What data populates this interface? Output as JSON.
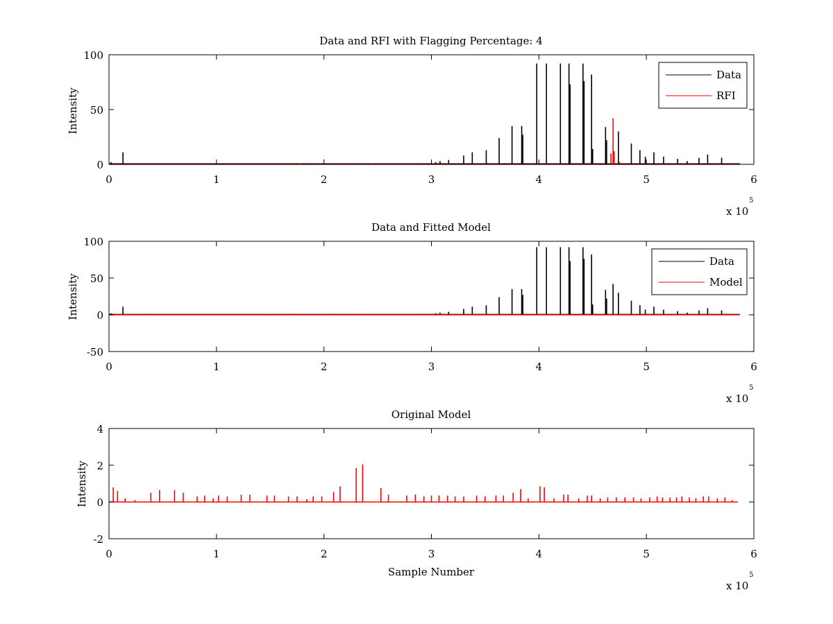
{
  "figure": {
    "background": "#ffffff",
    "axis_color": "#000000"
  },
  "chart_data": [
    {
      "type": "line",
      "title": "Data and RFI with Flagging Percentage: 4",
      "xlabel": "",
      "ylabel": "Intensity",
      "xlim": [
        0,
        6
      ],
      "ylim": [
        0,
        100
      ],
      "xticks": [
        "0",
        "1",
        "2",
        "3",
        "4",
        "5",
        "6"
      ],
      "yticks": [
        "0",
        "50",
        "100"
      ],
      "ytick_values": [
        0,
        50,
        100
      ],
      "x_multiplier": {
        "base": "x 10",
        "exponent": "5"
      },
      "grid": false,
      "legend": {
        "position": "top-right",
        "entries": [
          {
            "label": "Data",
            "color": "#000000"
          },
          {
            "label": "RFI",
            "color": "#ff0000"
          }
        ]
      },
      "series": [
        {
          "name": "Data",
          "color": "#000000",
          "baseline": 0.5,
          "spikes": [
            [
              0.02,
              2
            ],
            [
              0.13,
              11
            ],
            [
              1.75,
              1
            ],
            [
              2.06,
              1
            ],
            [
              2.72,
              1
            ],
            [
              2.86,
              1
            ],
            [
              2.96,
              1
            ],
            [
              3.04,
              2
            ],
            [
              3.08,
              3
            ],
            [
              3.16,
              4
            ],
            [
              3.3,
              8
            ],
            [
              3.38,
              11
            ],
            [
              3.51,
              13
            ],
            [
              3.63,
              24
            ],
            [
              3.75,
              35
            ],
            [
              3.84,
              35
            ],
            [
              3.85,
              27
            ],
            [
              3.98,
              92
            ],
            [
              4.07,
              92
            ],
            [
              4.2,
              92
            ],
            [
              4.28,
              92
            ],
            [
              4.29,
              73
            ],
            [
              4.41,
              92
            ],
            [
              4.42,
              76
            ],
            [
              4.49,
              82
            ],
            [
              4.5,
              14
            ],
            [
              4.62,
              34
            ],
            [
              4.63,
              22
            ],
            [
              4.74,
              30
            ],
            [
              4.86,
              19
            ],
            [
              4.94,
              13
            ],
            [
              4.99,
              7
            ],
            [
              5.07,
              11
            ],
            [
              5.16,
              7
            ],
            [
              5.29,
              5
            ],
            [
              5.38,
              3
            ],
            [
              5.49,
              6
            ],
            [
              5.57,
              9
            ],
            [
              5.7,
              6
            ]
          ]
        },
        {
          "name": "RFI",
          "color": "#ff0000",
          "baseline": 0,
          "spikes": [
            [
              1.78,
              1
            ],
            [
              2.45,
              1
            ],
            [
              3.15,
              1
            ],
            [
              4.67,
              10
            ],
            [
              4.69,
              42
            ],
            [
              4.7,
              12
            ],
            [
              4.75,
              2
            ]
          ]
        }
      ]
    },
    {
      "type": "line",
      "title": "Data and Fitted Model",
      "xlabel": "",
      "ylabel": "Intensity",
      "xlim": [
        0,
        6
      ],
      "ylim": [
        -50,
        100
      ],
      "xticks": [
        "0",
        "1",
        "2",
        "3",
        "4",
        "5",
        "6"
      ],
      "yticks": [
        "-50",
        "0",
        "50",
        "100"
      ],
      "ytick_values": [
        -50,
        0,
        50,
        100
      ],
      "x_multiplier": {
        "base": "x 10",
        "exponent": "5"
      },
      "grid": false,
      "legend": {
        "position": "top-right",
        "entries": [
          {
            "label": "Data",
            "color": "#000000"
          },
          {
            "label": "Model",
            "color": "#ff0000"
          }
        ]
      },
      "series": [
        {
          "name": "Data",
          "color": "#000000",
          "baseline": 0.5,
          "spikes": [
            [
              0.02,
              2
            ],
            [
              0.13,
              11
            ],
            [
              1.75,
              1
            ],
            [
              2.06,
              1
            ],
            [
              2.72,
              1
            ],
            [
              2.86,
              1
            ],
            [
              2.96,
              1
            ],
            [
              3.04,
              2
            ],
            [
              3.08,
              3
            ],
            [
              3.16,
              4
            ],
            [
              3.3,
              8
            ],
            [
              3.38,
              11
            ],
            [
              3.51,
              13
            ],
            [
              3.63,
              24
            ],
            [
              3.75,
              35
            ],
            [
              3.84,
              35
            ],
            [
              3.85,
              27
            ],
            [
              3.98,
              92
            ],
            [
              4.07,
              92
            ],
            [
              4.2,
              92
            ],
            [
              4.28,
              92
            ],
            [
              4.29,
              73
            ],
            [
              4.41,
              92
            ],
            [
              4.42,
              76
            ],
            [
              4.49,
              82
            ],
            [
              4.5,
              14
            ],
            [
              4.62,
              34
            ],
            [
              4.63,
              22
            ],
            [
              4.69,
              42
            ],
            [
              4.74,
              30
            ],
            [
              4.86,
              19
            ],
            [
              4.94,
              13
            ],
            [
              4.99,
              7
            ],
            [
              5.07,
              11
            ],
            [
              5.16,
              7
            ],
            [
              5.29,
              5
            ],
            [
              5.38,
              3
            ],
            [
              5.49,
              6
            ],
            [
              5.57,
              9
            ],
            [
              5.7,
              6
            ]
          ]
        },
        {
          "name": "Model",
          "color": "#ff0000",
          "baseline": 0,
          "spikes": [
            [
              0.05,
              1.5
            ],
            [
              0.12,
              1.2
            ],
            [
              0.35,
              1.5
            ],
            [
              0.62,
              1.2
            ],
            [
              0.88,
              1.3
            ],
            [
              1.1,
              1.2
            ],
            [
              1.3,
              1.4
            ],
            [
              1.55,
              1.1
            ],
            [
              1.78,
              1.4
            ],
            [
              1.95,
              1.2
            ],
            [
              2.3,
              1.2
            ],
            [
              2.36,
              1.3
            ],
            [
              2.8,
              1.0
            ],
            [
              3.2,
              1.0
            ],
            [
              3.6,
              1.0
            ],
            [
              4.0,
              1.5
            ],
            [
              4.4,
              1.2
            ],
            [
              4.8,
              1.0
            ],
            [
              5.2,
              1.0
            ],
            [
              5.6,
              1.0
            ]
          ]
        }
      ]
    },
    {
      "type": "line",
      "title": "Original Model",
      "xlabel": "Sample Number",
      "ylabel": "Intensity",
      "xlim": [
        0,
        6
      ],
      "ylim": [
        -2,
        4
      ],
      "xticks": [
        "0",
        "1",
        "2",
        "3",
        "4",
        "5",
        "6"
      ],
      "yticks": [
        "-2",
        "0",
        "2",
        "4"
      ],
      "ytick_values": [
        -2,
        0,
        2,
        4
      ],
      "x_multiplier": {
        "base": "x 10",
        "exponent": "5"
      },
      "grid": false,
      "legend": null,
      "series": [
        {
          "name": "",
          "color": "#ff0000",
          "baseline": 0,
          "spikes": [
            [
              0.04,
              0.8
            ],
            [
              0.08,
              0.6
            ],
            [
              0.15,
              0.2
            ],
            [
              0.24,
              0.1
            ],
            [
              0.39,
              0.5
            ],
            [
              0.47,
              0.65
            ],
            [
              0.61,
              0.65
            ],
            [
              0.69,
              0.5
            ],
            [
              0.82,
              0.3
            ],
            [
              0.89,
              0.35
            ],
            [
              0.97,
              0.2
            ],
            [
              1.02,
              0.35
            ],
            [
              1.1,
              0.3
            ],
            [
              1.23,
              0.4
            ],
            [
              1.31,
              0.4
            ],
            [
              1.47,
              0.35
            ],
            [
              1.54,
              0.35
            ],
            [
              1.67,
              0.3
            ],
            [
              1.75,
              0.3
            ],
            [
              1.84,
              0.15
            ],
            [
              1.9,
              0.3
            ],
            [
              1.98,
              0.3
            ],
            [
              2.09,
              0.55
            ],
            [
              2.15,
              0.85
            ],
            [
              2.3,
              1.85
            ],
            [
              2.36,
              2.05
            ],
            [
              2.53,
              0.75
            ],
            [
              2.6,
              0.4
            ],
            [
              2.77,
              0.35
            ],
            [
              2.85,
              0.4
            ],
            [
              2.93,
              0.3
            ],
            [
              3.0,
              0.35
            ],
            [
              3.07,
              0.35
            ],
            [
              3.15,
              0.35
            ],
            [
              3.22,
              0.3
            ],
            [
              3.3,
              0.3
            ],
            [
              3.42,
              0.35
            ],
            [
              3.5,
              0.3
            ],
            [
              3.6,
              0.35
            ],
            [
              3.67,
              0.35
            ],
            [
              3.76,
              0.5
            ],
            [
              3.83,
              0.7
            ],
            [
              3.9,
              0.2
            ],
            [
              4.01,
              0.85
            ],
            [
              4.05,
              0.8
            ],
            [
              4.14,
              0.2
            ],
            [
              4.23,
              0.4
            ],
            [
              4.27,
              0.4
            ],
            [
              4.37,
              0.2
            ],
            [
              4.45,
              0.35
            ],
            [
              4.49,
              0.35
            ],
            [
              4.57,
              0.2
            ],
            [
              4.64,
              0.25
            ],
            [
              4.72,
              0.25
            ],
            [
              4.8,
              0.25
            ],
            [
              4.88,
              0.25
            ],
            [
              4.95,
              0.2
            ],
            [
              5.03,
              0.25
            ],
            [
              5.1,
              0.3
            ],
            [
              5.15,
              0.25
            ],
            [
              5.22,
              0.25
            ],
            [
              5.28,
              0.25
            ],
            [
              5.33,
              0.3
            ],
            [
              5.4,
              0.25
            ],
            [
              5.46,
              0.2
            ],
            [
              5.53,
              0.3
            ],
            [
              5.58,
              0.3
            ],
            [
              5.66,
              0.2
            ],
            [
              5.73,
              0.25
            ],
            [
              5.8,
              0.1
            ]
          ]
        }
      ]
    }
  ]
}
